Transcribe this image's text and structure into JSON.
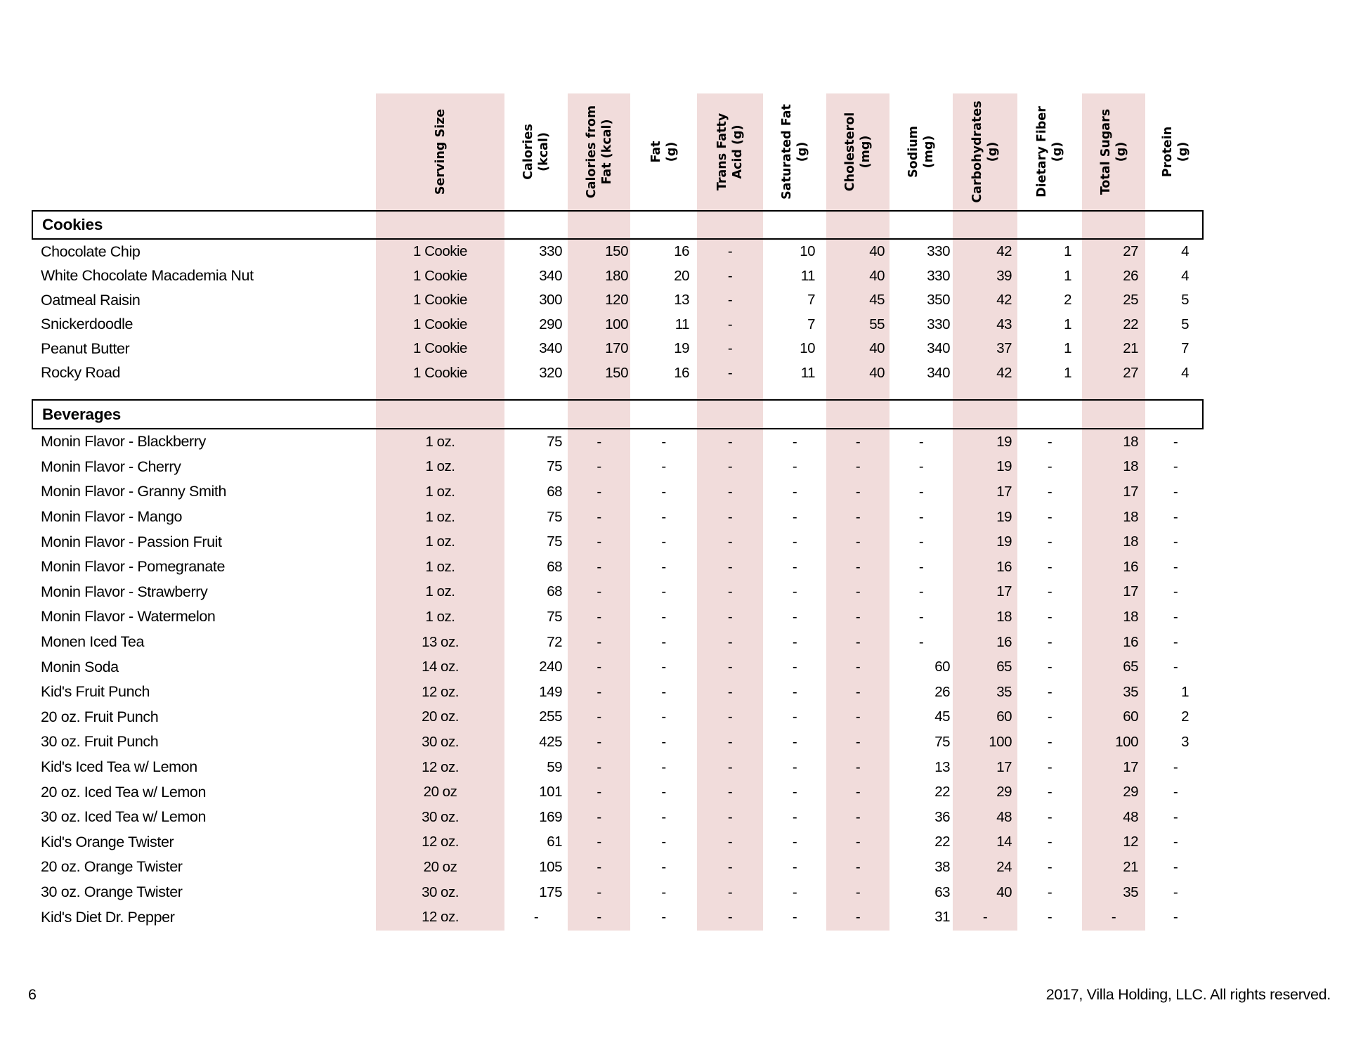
{
  "colors": {
    "band_pink": "#F1DCDB",
    "border": "#000000",
    "text": "#000000"
  },
  "table": {
    "columns": [
      {
        "line1": "Serving Size",
        "line2": ""
      },
      {
        "line1": "Calories",
        "line2": "(kcal)"
      },
      {
        "line1": "Calories from",
        "line2": "Fat (kcal)"
      },
      {
        "line1": "Fat",
        "line2": "(g)"
      },
      {
        "line1": "Trans Fatty",
        "line2": "Acid (g)"
      },
      {
        "line1": "Saturated Fat",
        "line2": "(g)"
      },
      {
        "line1": "Cholesterol",
        "line2": "(mg)"
      },
      {
        "line1": "Sodium",
        "line2": "(mg)"
      },
      {
        "line1": "Carbohydrates",
        "line2": "(g)"
      },
      {
        "line1": "Dietary Fiber",
        "line2": "(g)"
      },
      {
        "line1": "Total Sugars",
        "line2": "(g)"
      },
      {
        "line1": "Protein",
        "line2": "(g)"
      }
    ],
    "sections": [
      {
        "title": "Cookies",
        "rows": [
          {
            "name": "Chocolate Chip",
            "values": [
              "1 Cookie",
              "330",
              "150",
              "16",
              "-",
              "10",
              "40",
              "330",
              "42",
              "1",
              "27",
              "4"
            ]
          },
          {
            "name": "White Chocolate Macademia Nut",
            "values": [
              "1 Cookie",
              "340",
              "180",
              "20",
              "-",
              "11",
              "40",
              "330",
              "39",
              "1",
              "26",
              "4"
            ]
          },
          {
            "name": "Oatmeal Raisin",
            "values": [
              "1 Cookie",
              "300",
              "120",
              "13",
              "-",
              "7",
              "45",
              "350",
              "42",
              "2",
              "25",
              "5"
            ]
          },
          {
            "name": "Snickerdoodle",
            "values": [
              "1 Cookie",
              "290",
              "100",
              "11",
              "-",
              "7",
              "55",
              "330",
              "43",
              "1",
              "22",
              "5"
            ]
          },
          {
            "name": "Peanut Butter",
            "values": [
              "1 Cookie",
              "340",
              "170",
              "19",
              "-",
              "10",
              "40",
              "340",
              "37",
              "1",
              "21",
              "7"
            ]
          },
          {
            "name": "Rocky Road",
            "values": [
              "1 Cookie",
              "320",
              "150",
              "16",
              "-",
              "11",
              "40",
              "340",
              "42",
              "1",
              "27",
              "4"
            ]
          }
        ]
      },
      {
        "title": "Beverages",
        "rows": [
          {
            "name": "Monin Flavor - Blackberry",
            "values": [
              "1 oz.",
              "75",
              "-",
              "-",
              "-",
              "-",
              "-",
              "-",
              "19",
              "-",
              "18",
              "-"
            ]
          },
          {
            "name": "Monin Flavor - Cherry",
            "values": [
              "1 oz.",
              "75",
              "-",
              "-",
              "-",
              "-",
              "-",
              "-",
              "19",
              "-",
              "18",
              "-"
            ]
          },
          {
            "name": "Monin Flavor - Granny Smith",
            "values": [
              "1 oz.",
              "68",
              "-",
              "-",
              "-",
              "-",
              "-",
              "-",
              "17",
              "-",
              "17",
              "-"
            ]
          },
          {
            "name": "Monin Flavor - Mango",
            "values": [
              "1 oz.",
              "75",
              "-",
              "-",
              "-",
              "-",
              "-",
              "-",
              "19",
              "-",
              "18",
              "-"
            ]
          },
          {
            "name": "Monin Flavor - Passion Fruit",
            "values": [
              "1 oz.",
              "75",
              "-",
              "-",
              "-",
              "-",
              "-",
              "-",
              "19",
              "-",
              "18",
              "-"
            ]
          },
          {
            "name": "Monin Flavor - Pomegranate",
            "values": [
              "1 oz.",
              "68",
              "-",
              "-",
              "-",
              "-",
              "-",
              "-",
              "16",
              "-",
              "16",
              "-"
            ]
          },
          {
            "name": "Monin Flavor - Strawberry",
            "values": [
              "1 oz.",
              "68",
              "-",
              "-",
              "-",
              "-",
              "-",
              "-",
              "17",
              "-",
              "17",
              "-"
            ]
          },
          {
            "name": "Monin Flavor - Watermelon",
            "values": [
              "1 oz.",
              "75",
              "-",
              "-",
              "-",
              "-",
              "-",
              "-",
              "18",
              "-",
              "18",
              "-"
            ]
          },
          {
            "name": "Monen Iced Tea",
            "values": [
              "13 oz.",
              "72",
              "-",
              "-",
              "-",
              "-",
              "-",
              "-",
              "16",
              "-",
              "16",
              "-"
            ]
          },
          {
            "name": "Monin Soda",
            "values": [
              "14 oz.",
              "240",
              "-",
              "-",
              "-",
              "-",
              "-",
              "60",
              "65",
              "-",
              "65",
              "-"
            ]
          },
          {
            "name": "Kid's Fruit Punch",
            "values": [
              "12 oz.",
              "149",
              "-",
              "-",
              "-",
              "-",
              "-",
              "26",
              "35",
              "-",
              "35",
              "1"
            ]
          },
          {
            "name": "20 oz. Fruit Punch",
            "values": [
              "20 oz.",
              "255",
              "-",
              "-",
              "-",
              "-",
              "-",
              "45",
              "60",
              "-",
              "60",
              "2"
            ]
          },
          {
            "name": "30 oz. Fruit Punch",
            "values": [
              "30 oz.",
              "425",
              "-",
              "-",
              "-",
              "-",
              "-",
              "75",
              "100",
              "-",
              "100",
              "3"
            ]
          },
          {
            "name": "Kid's Iced Tea w/ Lemon",
            "values": [
              "12 oz.",
              "59",
              "-",
              "-",
              "-",
              "-",
              "-",
              "13",
              "17",
              "-",
              "17",
              "-"
            ]
          },
          {
            "name": "20 oz. Iced Tea w/ Lemon",
            "values": [
              "20 oz",
              "101",
              "-",
              "-",
              "-",
              "-",
              "-",
              "22",
              "29",
              "-",
              "29",
              "-"
            ]
          },
          {
            "name": "30 oz. Iced Tea w/ Lemon",
            "values": [
              "30 oz.",
              "169",
              "-",
              "-",
              "-",
              "-",
              "-",
              "36",
              "48",
              "-",
              "48",
              "-"
            ]
          },
          {
            "name": "Kid's Orange Twister",
            "values": [
              "12 oz.",
              "61",
              "-",
              "-",
              "-",
              "-",
              "-",
              "22",
              "14",
              "-",
              "12",
              "-"
            ]
          },
          {
            "name": "20 oz. Orange Twister",
            "values": [
              "20 oz",
              "105",
              "-",
              "-",
              "-",
              "-",
              "-",
              "38",
              "24",
              "-",
              "21",
              "-"
            ]
          },
          {
            "name": "30 oz. Orange Twister",
            "values": [
              "30 oz.",
              "175",
              "-",
              "-",
              "-",
              "-",
              "-",
              "63",
              "40",
              "-",
              "35",
              "-"
            ]
          },
          {
            "name": "Kid's Diet Dr. Pepper",
            "values": [
              "12 oz.",
              "-",
              "-",
              "-",
              "-",
              "-",
              "-",
              "31",
              "-",
              "-",
              "-",
              "-"
            ]
          }
        ]
      }
    ]
  },
  "footer": {
    "page_number": "6",
    "copyright": "2017, Villa Holding, LLC. All rights reserved."
  }
}
